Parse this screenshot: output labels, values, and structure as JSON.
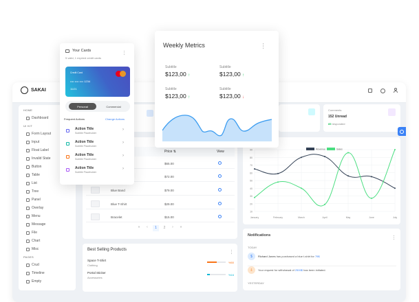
{
  "app": {
    "logo": "SAKAI"
  },
  "topbar": {
    "icons": [
      "calendar-icon",
      "settings-icon",
      "user-icon"
    ]
  },
  "sidebar": {
    "sections": [
      {
        "title": "HOME",
        "items": [
          "Dashboard"
        ]
      },
      {
        "title": "UI KIT",
        "items": [
          "Form Layout",
          "Input",
          "Float Label",
          "Invalid State",
          "Button",
          "Table",
          "List",
          "Tree",
          "Panel",
          "Overlay",
          "Menu",
          "Message",
          "File",
          "Chart",
          "Misc"
        ]
      },
      {
        "title": "PAGES",
        "items": [
          "Crud",
          "Timeline",
          "Empty"
        ]
      }
    ]
  },
  "stats": {
    "comments": {
      "label": "Comments",
      "value": "152 Unread",
      "highlight": "85",
      "suffix": "responded"
    }
  },
  "table": {
    "price_header": "Price",
    "view_header": "View",
    "rows": [
      {
        "name": "",
        "price": "$65.00"
      },
      {
        "name": "",
        "price": "$72.00"
      },
      {
        "name": "Blue Band",
        "price": "$79.00"
      },
      {
        "name": "Blue T-Shirt",
        "price": "$29.00"
      },
      {
        "name": "Bracelet",
        "price": "$15.00"
      }
    ],
    "pagination": {
      "first": "«",
      "prev": "‹",
      "pages": [
        "1",
        "2"
      ],
      "current": "1",
      "next": "›",
      "last": "»"
    }
  },
  "best_selling": {
    "title": "Best Selling Products",
    "items": [
      {
        "name": "Space T-Shirt",
        "category": "Clothing",
        "percent": "%50",
        "value": 50,
        "color": "#f97316"
      },
      {
        "name": "Portal Sticker",
        "category": "Accessories",
        "percent": "%16",
        "value": 16,
        "color": "#06b6d4"
      }
    ]
  },
  "notifications": {
    "title": "Notifications",
    "today": "TODAY",
    "yesterday": "YESTERDAY",
    "items": [
      {
        "avatar": "$",
        "who": "Richard Jones",
        "text": " has purchased a blue t-shirt for ",
        "amount": "79$"
      },
      {
        "avatar": "⇩",
        "pre": "Your request for withdrawal of ",
        "amount": "2500$",
        "text": " has been initiated."
      }
    ]
  },
  "your_cards": {
    "title": "Your Cards",
    "subtitle": "5 valid, 1 expired credit cards",
    "card": {
      "label": "Credit Card",
      "number": "•••• •••• •••• 1234",
      "expiry": "11/21",
      "brand": "mastercard"
    },
    "tabs": [
      "Personal",
      "Commercial"
    ],
    "active_tab": "Personal",
    "actions_title": "Frequent Actions",
    "change_actions": "Change Actions",
    "actions": [
      {
        "title": "Action Title",
        "subtitle": "Subtitle Placeholder",
        "icon": "send-icon",
        "color": "#6366f1"
      },
      {
        "title": "Action Title",
        "subtitle": "Subtitle Placeholder",
        "icon": "share-icon",
        "color": "#14b8a6"
      },
      {
        "title": "Action Title",
        "subtitle": "Subtitle Placeholder",
        "icon": "shield-icon",
        "color": "#f97316"
      },
      {
        "title": "Action Title",
        "subtitle": "Subtitle Placeholder",
        "icon": "cart-icon",
        "color": "#a855f7"
      }
    ]
  },
  "weekly": {
    "title": "Weekly Metrics",
    "metrics": [
      {
        "label": "Subtitle",
        "value": "$123,00",
        "trend": "up"
      },
      {
        "label": "Subtitle",
        "value": "$123,00",
        "trend": "up"
      },
      {
        "label": "Subtitle",
        "value": "$123,00",
        "trend": "up"
      },
      {
        "label": "Subtitle",
        "value": "$123,00",
        "trend": "down"
      }
    ],
    "up": "↑",
    "down": "↓"
  },
  "chart_data": {
    "type": "line",
    "categories": [
      "January",
      "February",
      "March",
      "April",
      "May",
      "June",
      "July"
    ],
    "series": [
      {
        "name": "Revenue",
        "values": [
          65,
          59,
          80,
          81,
          56,
          55,
          40
        ],
        "color": "#334155"
      },
      {
        "name": "Sales",
        "values": [
          28,
          48,
          40,
          19,
          86,
          27,
          90
        ],
        "color": "#4ade80"
      }
    ],
    "ylim": [
      10,
      90
    ],
    "yticks": [
      "10",
      "20",
      "30",
      "40",
      "50",
      "60",
      "70",
      "80",
      "90"
    ],
    "grid": true,
    "legend": "top"
  },
  "colors": {
    "primary": "#3b82f6",
    "up": "#22c55e",
    "down": "#ef4444"
  }
}
